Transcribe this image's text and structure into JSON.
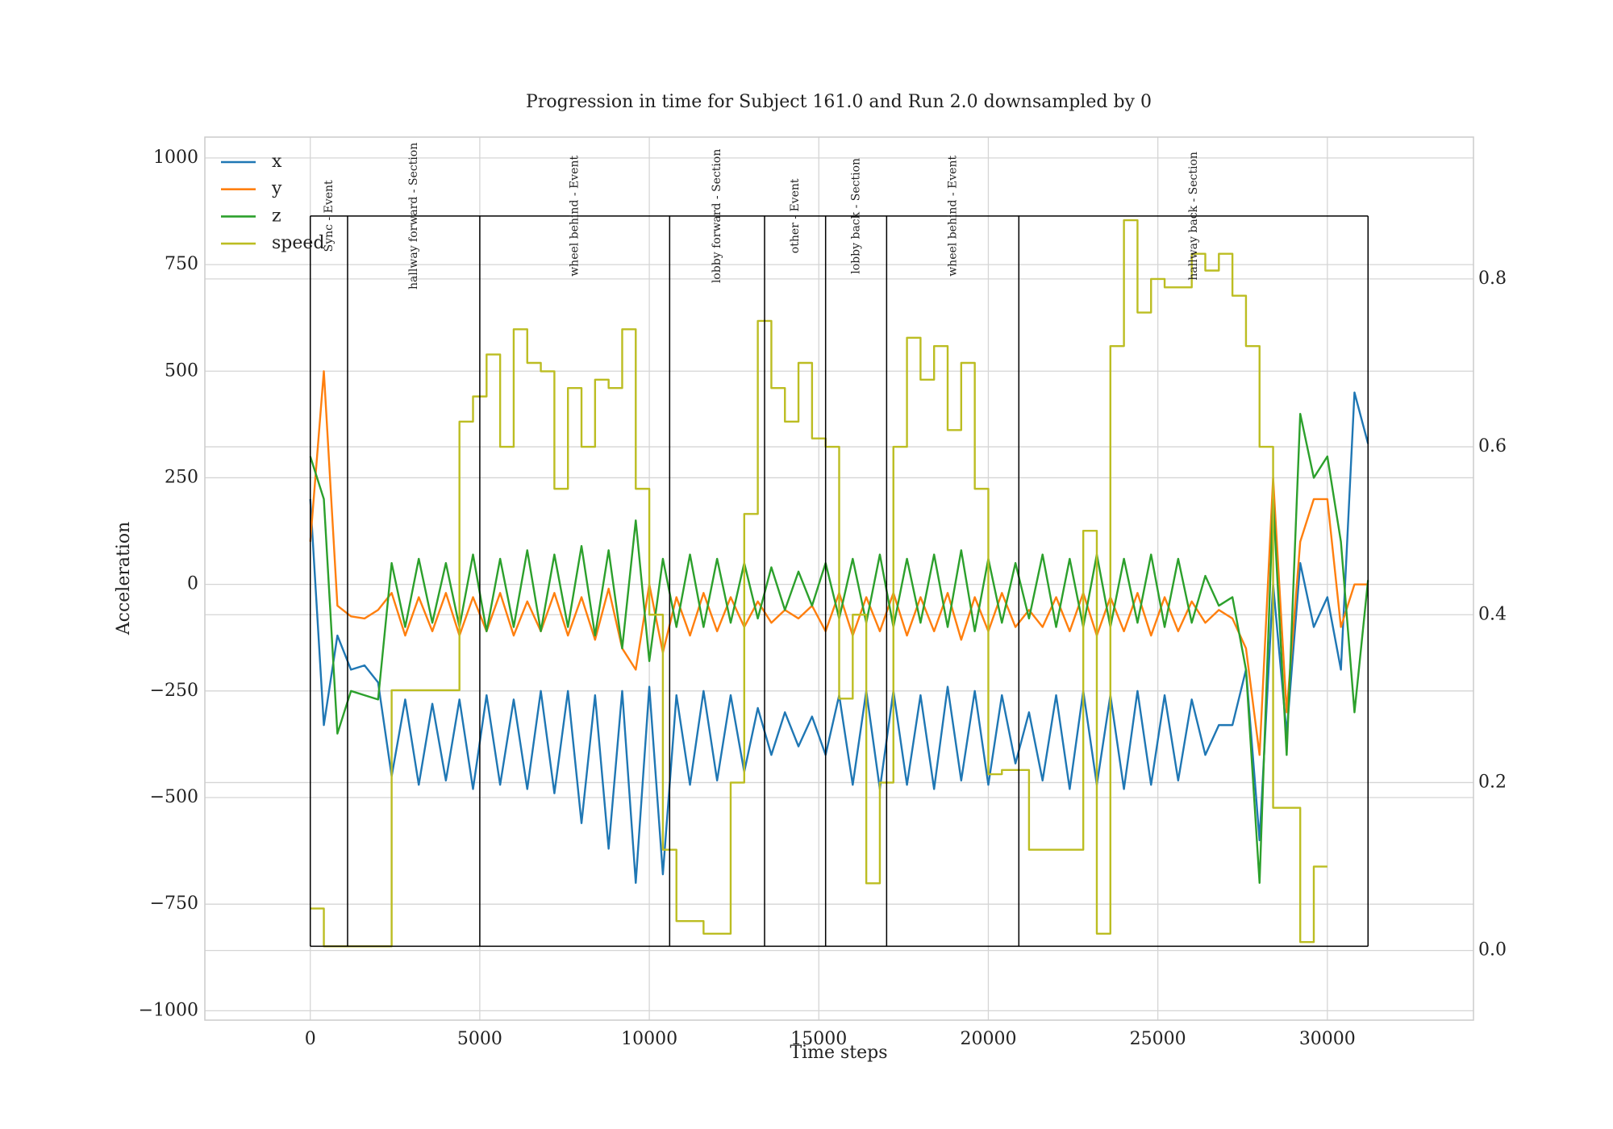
{
  "chart_data": {
    "type": "line",
    "title": "Progression in time for Subject 161.0 and Run 2.0 downsampled by 0",
    "xlabel": "Time steps",
    "ylabel": "Acceleration",
    "x": [
      0,
      400,
      800,
      1200,
      1600,
      2000,
      2400,
      2800,
      3200,
      3600,
      4000,
      4400,
      4800,
      5200,
      5600,
      6000,
      6400,
      6800,
      7200,
      7600,
      8000,
      8400,
      8800,
      9200,
      9600,
      10000,
      10400,
      10800,
      11200,
      11600,
      12000,
      12400,
      12800,
      13200,
      13600,
      14000,
      14400,
      14800,
      15200,
      15600,
      16000,
      16400,
      16800,
      17200,
      17600,
      18000,
      18400,
      18800,
      19200,
      19600,
      20000,
      20400,
      20800,
      21200,
      21600,
      22000,
      22400,
      22800,
      23200,
      23600,
      24000,
      24400,
      24800,
      25200,
      25600,
      26000,
      26400,
      26800,
      27200,
      27600,
      28000,
      28400,
      28800,
      29200,
      29600,
      30000,
      30400,
      30800,
      31200
    ],
    "series": [
      {
        "name": "x",
        "color": "#1f77b4",
        "values": [
          200,
          -330,
          -120,
          -200,
          -190,
          -230,
          -450,
          -270,
          -470,
          -280,
          -460,
          -270,
          -480,
          -260,
          -470,
          -270,
          -480,
          -250,
          -490,
          -250,
          -560,
          -260,
          -620,
          -250,
          -700,
          -240,
          -680,
          -260,
          -470,
          -250,
          -460,
          -260,
          -440,
          -290,
          -400,
          -300,
          -380,
          -310,
          -400,
          -260,
          -470,
          -250,
          -480,
          -250,
          -470,
          -260,
          -480,
          -240,
          -460,
          -250,
          -470,
          -260,
          -420,
          -300,
          -460,
          -260,
          -480,
          -250,
          -470,
          -260,
          -480,
          -250,
          -470,
          -260,
          -460,
          -270,
          -400,
          -330,
          -330,
          -200,
          -600,
          0,
          -350,
          50,
          -100,
          -30,
          -200,
          450,
          330
        ]
      },
      {
        "name": "y",
        "color": "#ff7f0e",
        "values": [
          100,
          500,
          -50,
          -75,
          -80,
          -60,
          -20,
          -120,
          -30,
          -110,
          -20,
          -120,
          -30,
          -110,
          -20,
          -120,
          -40,
          -110,
          -20,
          -120,
          -30,
          -130,
          -10,
          -150,
          -200,
          0,
          -160,
          -30,
          -120,
          -20,
          -110,
          -30,
          -100,
          -40,
          -90,
          -60,
          -80,
          -50,
          -110,
          -20,
          -120,
          -30,
          -110,
          -20,
          -120,
          -30,
          -110,
          -20,
          -130,
          -30,
          -110,
          -20,
          -100,
          -60,
          -100,
          -30,
          -110,
          -20,
          -120,
          -30,
          -110,
          -20,
          -120,
          -30,
          -110,
          -40,
          -90,
          -60,
          -80,
          -150,
          -400,
          250,
          -300,
          100,
          200,
          200,
          -100,
          0,
          0
        ]
      },
      {
        "name": "z",
        "color": "#2ca02c",
        "values": [
          300,
          200,
          -350,
          -250,
          -260,
          -270,
          50,
          -100,
          60,
          -90,
          50,
          -100,
          70,
          -110,
          60,
          -100,
          80,
          -110,
          70,
          -100,
          90,
          -120,
          80,
          -150,
          150,
          -180,
          60,
          -100,
          70,
          -100,
          60,
          -90,
          50,
          -80,
          40,
          -60,
          30,
          -50,
          50,
          -80,
          60,
          -90,
          70,
          -100,
          60,
          -90,
          70,
          -100,
          80,
          -110,
          60,
          -90,
          50,
          -80,
          70,
          -100,
          60,
          -100,
          70,
          -100,
          60,
          -90,
          70,
          -100,
          60,
          -90,
          20,
          -50,
          -30,
          -200,
          -700,
          200,
          -400,
          400,
          250,
          300,
          100,
          -300,
          10
        ]
      },
      {
        "name": "speed",
        "color": "#bcbd22",
        "axis": "y2",
        "drawstyle": "steps",
        "values": [
          0.05,
          0.005,
          0.005,
          0.005,
          0.005,
          0.005,
          0.31,
          0.31,
          0.31,
          0.31,
          0.31,
          0.63,
          0.66,
          0.71,
          0.6,
          0.74,
          0.7,
          0.69,
          0.55,
          0.67,
          0.6,
          0.68,
          0.67,
          0.74,
          0.55,
          0.4,
          0.12,
          0.035,
          0.035,
          0.02,
          0.02,
          0.2,
          0.52,
          0.75,
          0.67,
          0.63,
          0.7,
          0.61,
          0.6,
          0.3,
          0.4,
          0.08,
          0.2,
          0.6,
          0.73,
          0.68,
          0.72,
          0.62,
          0.7,
          0.55,
          0.21,
          0.215,
          0.215,
          0.12,
          0.12,
          0.12,
          0.12,
          0.5,
          0.02,
          0.72,
          0.87,
          0.76,
          0.8,
          0.79,
          0.79,
          0.83,
          0.81,
          0.83,
          0.78,
          0.72,
          0.6,
          0.17,
          0.17,
          0.01,
          0.1,
          0.1,
          null,
          null,
          null
        ]
      }
    ],
    "sections": [
      {
        "label": "Sync - Event",
        "start": 0,
        "end": 1100
      },
      {
        "label": "hallway forward - Section",
        "start": 1100,
        "end": 5000
      },
      {
        "label": "wheel behind - Event",
        "start": 5000,
        "end": 10600
      },
      {
        "label": "lobby forward - Section",
        "start": 10600,
        "end": 13400
      },
      {
        "label": "other - Event",
        "start": 13400,
        "end": 15200
      },
      {
        "label": "lobby back - Section",
        "start": 15200,
        "end": 17000
      },
      {
        "label": "wheel behind - Event",
        "start": 17000,
        "end": 20900
      },
      {
        "label": "hallway back - Section",
        "start": 20900,
        "end": 31200
      }
    ],
    "section_box_y2": [
      0.005,
      0.875
    ],
    "xlim": [
      -3110,
      34310
    ],
    "xticks": [
      0,
      5000,
      10000,
      15000,
      20000,
      25000,
      30000
    ],
    "ylim": [
      -1022,
      1049
    ],
    "yticks": [
      {
        "value": -1000,
        "label": "−1000"
      },
      {
        "value": -750,
        "label": "−750"
      },
      {
        "value": -500,
        "label": "−500"
      },
      {
        "value": -250,
        "label": "−250"
      },
      0,
      250,
      500,
      750,
      1000
    ],
    "y2lim": [
      -0.083,
      0.969
    ],
    "y2ticks": [
      {
        "value": 0,
        "label": "0.0"
      },
      0.2,
      0.4,
      0.6,
      0.8
    ],
    "grid": true,
    "legend": "upper left"
  }
}
